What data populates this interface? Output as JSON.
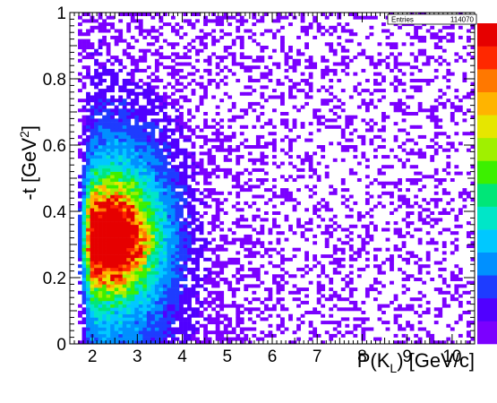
{
  "chart_data": {
    "type": "heatmap",
    "title": "",
    "xlabel": {
      "prefix": "P(K",
      "sub": "L",
      "suffix": ") [GeV/c]"
    },
    "ylabel": {
      "prefix": "-t [GeV",
      "sup": "2",
      "suffix": "]"
    },
    "xlim": [
      1.5,
      10.5
    ],
    "ylim": [
      0,
      1
    ],
    "x_ticks": [
      2,
      3,
      4,
      5,
      6,
      7,
      8,
      9,
      10
    ],
    "y_ticks": [
      0,
      0.2,
      0.4,
      0.6,
      0.8,
      1
    ],
    "y_tick_labels": [
      "0",
      "0.2",
      "0.4",
      "0.6",
      "0.8",
      "1"
    ],
    "stats": {
      "label": "Entries",
      "value": "114070"
    },
    "colormap": [
      "#7b00ff",
      "#5000ff",
      "#1e3cff",
      "#0090ff",
      "#00c8ff",
      "#00e6c8",
      "#00e678",
      "#3cf000",
      "#a0f000",
      "#e6e600",
      "#ffb400",
      "#ff7800",
      "#ff2800",
      "#e60000"
    ],
    "peak": {
      "x": 2.3,
      "y": 0.32
    },
    "density_description": "Dense band for P between 1.8 and 4.5 GeV/c, peak near P=2.3, -t=0.32; sparse scatter at higher momentum"
  }
}
